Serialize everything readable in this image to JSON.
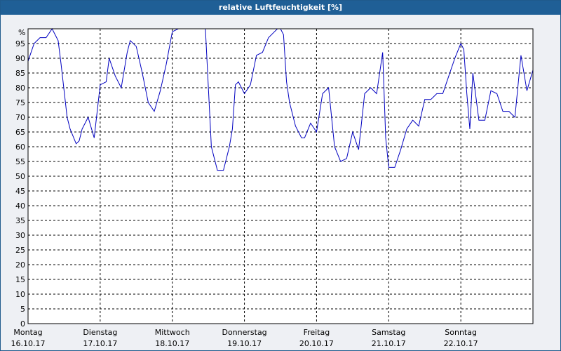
{
  "colors": {
    "titlebar": "#1f5f96",
    "line": "#0000c0",
    "grid": "#000000",
    "background": "#eef0f4"
  },
  "chart_data": {
    "type": "line",
    "title": "relative Luftfeuchtigkeit [%]",
    "xlabel": "",
    "ylabel": "",
    "y_unit_label": "%",
    "ylim": [
      0,
      100
    ],
    "yticks": [
      0,
      5,
      10,
      15,
      20,
      25,
      30,
      35,
      40,
      45,
      50,
      55,
      60,
      65,
      70,
      75,
      80,
      85,
      90,
      95
    ],
    "grid": true,
    "x_range_hours": [
      0,
      168
    ],
    "x_categories": [
      {
        "day": "Montag",
        "date": "16.10.17"
      },
      {
        "day": "Dienstag",
        "date": "17.10.17"
      },
      {
        "day": "Mittwoch",
        "date": "18.10.17"
      },
      {
        "day": "Donnerstag",
        "date": "19.10.17"
      },
      {
        "day": "Freitag",
        "date": "20.10.17"
      },
      {
        "day": "Samstag",
        "date": "21.10.17"
      },
      {
        "day": "Sonntag",
        "date": "22.10.17"
      }
    ],
    "series": [
      {
        "x": [
          0,
          2,
          4,
          6,
          8,
          10,
          11,
          13,
          14,
          16,
          17,
          18,
          20,
          22,
          24,
          26,
          27,
          29,
          31,
          33,
          34,
          36,
          38,
          40,
          42,
          44,
          46,
          48,
          50,
          51,
          54,
          58,
          59,
          61,
          63,
          65,
          67,
          68,
          69,
          70,
          72,
          74,
          76,
          78,
          80,
          82,
          83,
          84,
          85,
          86,
          87,
          89,
          91,
          92,
          94,
          96,
          98,
          100,
          102,
          104,
          106,
          108,
          110,
          112,
          114,
          116,
          118,
          119,
          120,
          122,
          124,
          126,
          128,
          130,
          132,
          134,
          135,
          136,
          138,
          140,
          142,
          144,
          145,
          146,
          147,
          148,
          150,
          152,
          154,
          156,
          158,
          160,
          162,
          164,
          166,
          168
        ],
        "values": [
          89,
          95,
          97,
          97,
          100,
          96,
          88,
          70,
          66,
          61,
          62,
          66,
          70,
          63,
          81,
          82,
          90,
          84,
          80,
          92,
          96,
          94,
          85,
          75,
          72,
          79,
          88,
          99,
          100,
          100,
          100,
          100,
          100,
          60,
          52,
          52,
          60,
          66,
          81,
          82,
          78,
          81,
          91,
          92,
          97,
          99,
          100,
          100,
          98,
          82,
          75,
          67,
          63,
          63,
          68,
          65,
          78,
          80,
          60,
          55,
          56,
          65,
          59,
          78,
          80,
          78,
          92,
          63,
          53,
          53,
          59,
          66,
          69,
          67,
          76,
          76,
          77,
          78,
          78,
          84,
          90,
          95,
          93,
          78,
          66,
          85,
          69,
          69,
          79,
          78,
          72,
          72,
          70,
          91,
          79,
          86
        ]
      }
    ]
  }
}
